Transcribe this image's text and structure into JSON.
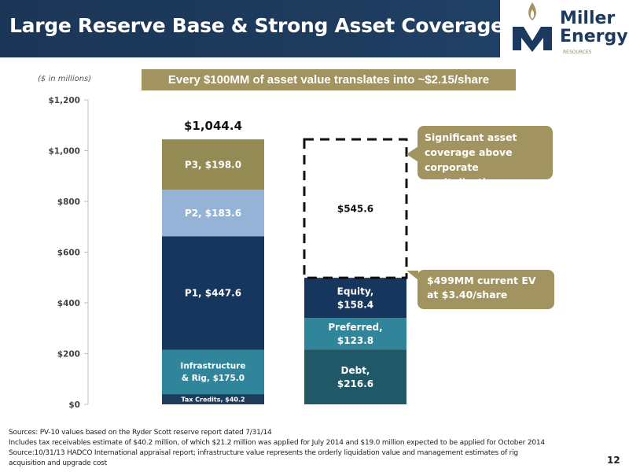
{
  "header": {
    "title": "Large Reserve Base & Strong Asset Coverage"
  },
  "logo": {
    "name_line1": "Miller",
    "name_line2": "Energy",
    "sub": "RESOURCES"
  },
  "units_note": "($ in millions)",
  "banner": "Every $100MM of asset value translates into ~$2.15/share",
  "chart_data": {
    "type": "stacked-bar",
    "ylim": [
      0,
      1200
    ],
    "yticks": [
      "$0",
      "$200",
      "$400",
      "$600",
      "$800",
      "$1,000",
      "$1,200"
    ],
    "ytick_values": [
      0,
      200,
      400,
      600,
      800,
      1000,
      1200
    ],
    "grid": false,
    "bars": [
      {
        "total_label": "$1,044.4",
        "segments": [
          {
            "label": "Tax Credits, $40.2",
            "value": 40.2,
            "color": "#1d3d5a"
          },
          {
            "label": "Infrastructure & Rig, $175.0",
            "value": 175.0,
            "color": "#31859b"
          },
          {
            "label": "P1, $447.6",
            "value": 447.6,
            "color": "#17365d"
          },
          {
            "label": "P2, $183.6",
            "value": 183.6,
            "color": "#95b3d7"
          },
          {
            "label": "P3, $198.0",
            "value": 198.0,
            "color": "#948a54"
          }
        ]
      },
      {
        "total_label": "",
        "segments": [
          {
            "label": "Debt, $216.6",
            "value": 216.6,
            "color": "#215868"
          },
          {
            "label": "Preferred, $123.8",
            "value": 123.8,
            "color": "#31859b"
          },
          {
            "label": "Equity, $158.4",
            "value": 158.4,
            "color": "#17365d"
          },
          {
            "label": "$545.6",
            "value": 545.6,
            "color": "none",
            "dashed": true
          }
        ]
      }
    ]
  },
  "callouts": {
    "top": "Significant asset coverage above corporate capitalization",
    "bottom": "$499MM current EV at $3.40/share"
  },
  "footnotes": [
    "Sources: PV-10 values based on the Ryder Scott reserve report dated 7/31/14",
    "Includes tax receivables estimate of $40.2 million, of which $21.2 million was applied for July 2014 and $19.0 million expected to be applied for October 2014",
    "Source:10/31/13 HADCO International appraisal report; infrastructure value represents the orderly liquidation value and management estimates of rig",
    "acquisition and upgrade cost"
  ],
  "page_number": "12"
}
